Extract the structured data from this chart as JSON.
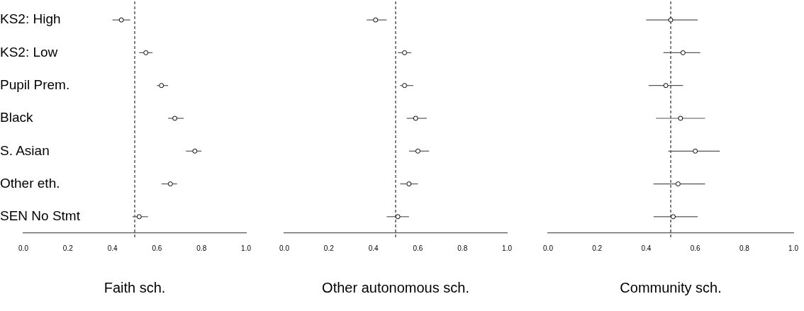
{
  "chart_data": [
    {
      "type": "scatter",
      "orientation": "horizontal",
      "xlabel": "Faith sch.",
      "categories": [
        "KS2: High",
        "KS2: Low",
        "Pupil Prem.",
        "Black",
        "S. Asian",
        "Other eth.",
        "SEN No Stmt"
      ],
      "color": "#000000",
      "marker": "circle",
      "values": [
        0.44,
        0.55,
        0.62,
        0.68,
        0.77,
        0.66,
        0.52
      ],
      "errors": [
        [
          0.4,
          0.48
        ],
        [
          0.52,
          0.58
        ],
        [
          0.6,
          0.65
        ],
        [
          0.65,
          0.72
        ],
        [
          0.73,
          0.8
        ],
        [
          0.62,
          0.69
        ],
        [
          0.49,
          0.56
        ]
      ],
      "xlim": [
        0,
        1
      ],
      "xticks": [
        {
          "value": 0,
          "label": "0.0"
        },
        {
          "value": 0.2,
          "label": "0.2"
        },
        {
          "value": 0.4,
          "label": "0.4"
        },
        {
          "value": 0.6,
          "label": "0.6"
        },
        {
          "value": 0.8,
          "label": "0.8"
        },
        {
          "value": 1,
          "label": "1.0"
        }
      ],
      "ref_lines": [
        {
          "axis": "x",
          "value": 0.5,
          "line_style": "dashed",
          "color": "#000000"
        }
      ],
      "grid": false,
      "legend": false
    },
    {
      "type": "scatter",
      "orientation": "horizontal",
      "xlabel": "Other autonomous sch.",
      "categories": [
        null,
        null,
        null,
        null,
        null,
        null,
        null
      ],
      "color": "#000000",
      "marker": "circle",
      "values": [
        0.41,
        0.54,
        0.54,
        0.59,
        0.6,
        0.56,
        0.51
      ],
      "errors": [
        [
          0.37,
          0.46
        ],
        [
          0.51,
          0.57
        ],
        [
          0.52,
          0.58
        ],
        [
          0.55,
          0.64
        ],
        [
          0.56,
          0.65
        ],
        [
          0.52,
          0.6
        ],
        [
          0.46,
          0.56
        ]
      ],
      "xlim": [
        0,
        1
      ],
      "xticks": [
        {
          "value": 0,
          "label": "0.0"
        },
        {
          "value": 0.2,
          "label": "0.2"
        },
        {
          "value": 0.4,
          "label": "0.4"
        },
        {
          "value": 0.6,
          "label": "0.6"
        },
        {
          "value": 0.8,
          "label": "0.8"
        },
        {
          "value": 1,
          "label": "1.0"
        }
      ],
      "ref_lines": [
        {
          "axis": "x",
          "value": 0.5,
          "line_style": "dashed",
          "color": "#000000"
        }
      ],
      "grid": false,
      "legend": false,
      "tick_labels": "x"
    },
    {
      "type": "scatter",
      "orientation": "horizontal",
      "xlabel": "Community sch.",
      "categories": [
        null,
        null,
        null,
        null,
        null,
        null,
        null
      ],
      "color": "#000000",
      "marker": "circle",
      "values": [
        0.5,
        0.55,
        0.48,
        0.54,
        0.6,
        0.53,
        0.51
      ],
      "errors": [
        [
          0.4,
          0.61
        ],
        [
          0.47,
          0.62
        ],
        [
          0.41,
          0.55
        ],
        [
          0.44,
          0.64
        ],
        [
          0.49,
          0.7
        ],
        [
          0.43,
          0.64
        ],
        [
          0.43,
          0.61
        ]
      ],
      "xlim": [
        0,
        1
      ],
      "xticks": [
        {
          "value": 0,
          "label": "0.0"
        },
        {
          "value": 0.2,
          "label": "0.2"
        },
        {
          "value": 0.4,
          "label": "0.4"
        },
        {
          "value": 0.6,
          "label": "0.6"
        },
        {
          "value": 0.8,
          "label": "0.8"
        },
        {
          "value": 1,
          "label": "1.0"
        }
      ],
      "ref_lines": [
        {
          "axis": "x",
          "value": 0.5,
          "line_style": "dashed",
          "color": "#000000"
        }
      ],
      "grid": false,
      "legend": false,
      "tick_labels": "x"
    }
  ]
}
